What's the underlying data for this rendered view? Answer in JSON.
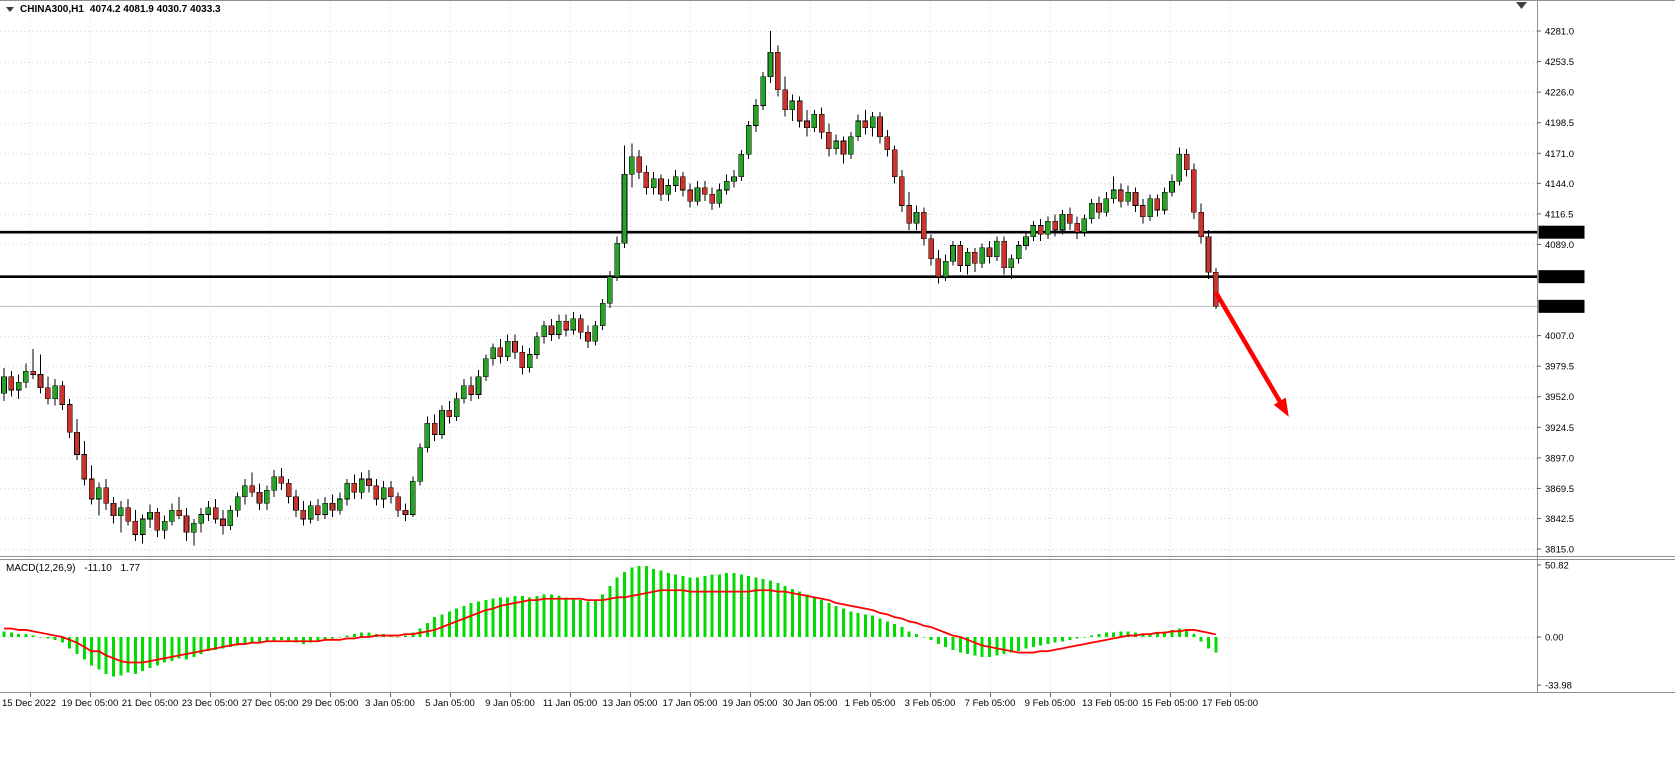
{
  "header": {
    "symbol": "CHINA300,H1",
    "ohlc": "4074.2 4081.9 4030.7 4033.3"
  },
  "macd_panel": {
    "name": "MACD(12,26,9)",
    "main_value": "-11.10",
    "signal_value": "1.77",
    "ticks": [
      {
        "label": "50.82",
        "value": 50.82
      },
      {
        "label": "0.00",
        "value": 0
      },
      {
        "label": "-33.98",
        "value": -33.98
      }
    ]
  },
  "price_axis": {
    "ticks": [
      {
        "label": "4281.0",
        "value": 4281.0
      },
      {
        "label": "4253.5",
        "value": 4253.5
      },
      {
        "label": "4226.0",
        "value": 4226.0
      },
      {
        "label": "4198.5",
        "value": 4198.5
      },
      {
        "label": "4171.0",
        "value": 4171.0
      },
      {
        "label": "4144.0",
        "value": 4144.0
      },
      {
        "label": "4116.5",
        "value": 4116.5
      },
      {
        "label": "4089.0",
        "value": 4089.0
      },
      {
        "label": "4007.0",
        "value": 4007.0
      },
      {
        "label": "3979.5",
        "value": 3979.5
      },
      {
        "label": "3952.0",
        "value": 3952.0
      },
      {
        "label": "3924.5",
        "value": 3924.5
      },
      {
        "label": "3897.0",
        "value": 3897.0
      },
      {
        "label": "3869.5",
        "value": 3869.5
      },
      {
        "label": "3842.5",
        "value": 3842.5
      },
      {
        "label": "3815.0",
        "value": 3815.0
      }
    ],
    "hidden_grid_values": [
      4061.5,
      4034.0
    ],
    "badges": [
      {
        "label": "4100.0",
        "value": 4100.0
      },
      {
        "label": "4060.0",
        "value": 4060.0
      },
      {
        "label": "4033.3",
        "value": 4033.3
      }
    ]
  },
  "time_axis": {
    "labels": [
      "15 Dec 2022",
      "19 Dec 05:00",
      "21 Dec 05:00",
      "23 Dec 05:00",
      "27 Dec 05:00",
      "29 Dec 05:00",
      "3 Jan 05:00",
      "5 Jan 05:00",
      "9 Jan 05:00",
      "11 Jan 05:00",
      "13 Jan 05:00",
      "17 Jan 05:00",
      "19 Jan 05:00",
      "30 Jan 05:00",
      "1 Feb 05:00",
      "3 Feb 05:00",
      "7 Feb 05:00",
      "9 Feb 05:00",
      "13 Feb 05:00",
      "15 Feb 05:00",
      "17 Feb 05:00"
    ]
  },
  "chart_data": {
    "type": "candlestick",
    "symbol": "CHINA300",
    "timeframe": "H1",
    "title": "CHINA300,H1",
    "current": {
      "open": 4074.2,
      "high": 4081.9,
      "low": 4030.7,
      "close": 4033.3
    },
    "ylim": [
      3815.0,
      4281.0
    ],
    "x_range": [
      "15 Dec 2022",
      "17 Feb 05:00"
    ],
    "hlines": [
      4100.0,
      4060.0
    ],
    "arrow": {
      "from": {
        "bar": 166,
        "price": 4046
      },
      "to": {
        "bar": 176,
        "price": 3934
      }
    },
    "candles": [
      [
        3955,
        3978,
        3948,
        3970
      ],
      [
        3970,
        3975,
        3952,
        3958
      ],
      [
        3958,
        3972,
        3950,
        3965
      ],
      [
        3965,
        3982,
        3960,
        3975
      ],
      [
        3975,
        3995,
        3968,
        3972
      ],
      [
        3972,
        3990,
        3955,
        3960
      ],
      [
        3960,
        3970,
        3945,
        3950
      ],
      [
        3950,
        3968,
        3944,
        3962
      ],
      [
        3962,
        3966,
        3940,
        3945
      ],
      [
        3945,
        3950,
        3915,
        3920
      ],
      [
        3920,
        3932,
        3895,
        3900
      ],
      [
        3900,
        3912,
        3872,
        3878
      ],
      [
        3878,
        3890,
        3855,
        3860
      ],
      [
        3860,
        3875,
        3845,
        3870
      ],
      [
        3870,
        3878,
        3850,
        3856
      ],
      [
        3856,
        3862,
        3838,
        3845
      ],
      [
        3845,
        3858,
        3830,
        3852
      ],
      [
        3852,
        3860,
        3836,
        3840
      ],
      [
        3840,
        3850,
        3822,
        3828
      ],
      [
        3828,
        3846,
        3820,
        3842
      ],
      [
        3842,
        3855,
        3834,
        3848
      ],
      [
        3848,
        3852,
        3826,
        3832
      ],
      [
        3832,
        3845,
        3824,
        3840
      ],
      [
        3840,
        3856,
        3836,
        3850
      ],
      [
        3850,
        3862,
        3842,
        3845
      ],
      [
        3845,
        3852,
        3822,
        3830
      ],
      [
        3830,
        3842,
        3818,
        3838
      ],
      [
        3838,
        3852,
        3830,
        3846
      ],
      [
        3846,
        3858,
        3840,
        3852
      ],
      [
        3852,
        3860,
        3838,
        3842
      ],
      [
        3842,
        3850,
        3828,
        3836
      ],
      [
        3836,
        3854,
        3832,
        3850
      ],
      [
        3850,
        3866,
        3844,
        3862
      ],
      [
        3862,
        3878,
        3855,
        3872
      ],
      [
        3872,
        3884,
        3862,
        3866
      ],
      [
        3866,
        3874,
        3850,
        3856
      ],
      [
        3856,
        3872,
        3850,
        3868
      ],
      [
        3868,
        3886,
        3862,
        3880
      ],
      [
        3880,
        3888,
        3868,
        3874
      ],
      [
        3874,
        3878,
        3856,
        3862
      ],
      [
        3862,
        3868,
        3844,
        3850
      ],
      [
        3850,
        3858,
        3836,
        3842
      ],
      [
        3842,
        3858,
        3838,
        3854
      ],
      [
        3854,
        3860,
        3840,
        3846
      ],
      [
        3846,
        3862,
        3842,
        3856
      ],
      [
        3856,
        3864,
        3844,
        3850
      ],
      [
        3850,
        3866,
        3846,
        3860
      ],
      [
        3860,
        3878,
        3854,
        3874
      ],
      [
        3874,
        3882,
        3860,
        3866
      ],
      [
        3866,
        3884,
        3860,
        3878
      ],
      [
        3878,
        3886,
        3866,
        3872
      ],
      [
        3872,
        3878,
        3854,
        3860
      ],
      [
        3860,
        3876,
        3852,
        3870
      ],
      [
        3870,
        3876,
        3856,
        3862
      ],
      [
        3862,
        3866,
        3844,
        3850
      ],
      [
        3850,
        3856,
        3840,
        3846
      ],
      [
        3846,
        3880,
        3844,
        3876
      ],
      [
        3876,
        3910,
        3872,
        3906
      ],
      [
        3906,
        3934,
        3902,
        3928
      ],
      [
        3928,
        3936,
        3912,
        3918
      ],
      [
        3918,
        3944,
        3914,
        3940
      ],
      [
        3940,
        3948,
        3928,
        3934
      ],
      [
        3934,
        3956,
        3930,
        3950
      ],
      [
        3950,
        3968,
        3946,
        3962
      ],
      [
        3962,
        3970,
        3948,
        3954
      ],
      [
        3954,
        3976,
        3950,
        3970
      ],
      [
        3970,
        3990,
        3966,
        3986
      ],
      [
        3986,
        4000,
        3980,
        3996
      ],
      [
        3996,
        4004,
        3982,
        3988
      ],
      [
        3988,
        4008,
        3984,
        4002
      ],
      [
        4002,
        4008,
        3986,
        3992
      ],
      [
        3992,
        3998,
        3972,
        3978
      ],
      [
        3978,
        3996,
        3974,
        3990
      ],
      [
        3990,
        4010,
        3986,
        4006
      ],
      [
        4006,
        4020,
        4000,
        4016
      ],
      [
        4016,
        4022,
        4002,
        4008
      ],
      [
        4008,
        4026,
        4004,
        4020
      ],
      [
        4020,
        4026,
        4006,
        4012
      ],
      [
        4012,
        4028,
        4008,
        4022
      ],
      [
        4022,
        4026,
        4004,
        4010
      ],
      [
        4010,
        4016,
        3996,
        4002
      ],
      [
        4002,
        4020,
        3998,
        4016
      ],
      [
        4016,
        4040,
        4012,
        4036
      ],
      [
        4036,
        4065,
        4032,
        4060
      ],
      [
        4060,
        4096,
        4056,
        4090
      ],
      [
        4090,
        4178,
        4086,
        4152
      ],
      [
        4152,
        4180,
        4140,
        4168
      ],
      [
        4168,
        4174,
        4148,
        4154
      ],
      [
        4154,
        4160,
        4134,
        4140
      ],
      [
        4140,
        4154,
        4134,
        4148
      ],
      [
        4148,
        4152,
        4128,
        4134
      ],
      [
        4134,
        4148,
        4128,
        4142
      ],
      [
        4142,
        4156,
        4136,
        4150
      ],
      [
        4150,
        4154,
        4132,
        4138
      ],
      [
        4138,
        4144,
        4122,
        4128
      ],
      [
        4128,
        4146,
        4124,
        4140
      ],
      [
        4140,
        4146,
        4128,
        4134
      ],
      [
        4134,
        4140,
        4120,
        4126
      ],
      [
        4126,
        4144,
        4122,
        4138
      ],
      [
        4138,
        4152,
        4134,
        4146
      ],
      [
        4146,
        4156,
        4140,
        4150
      ],
      [
        4150,
        4174,
        4146,
        4170
      ],
      [
        4170,
        4200,
        4166,
        4196
      ],
      [
        4196,
        4220,
        4190,
        4214
      ],
      [
        4214,
        4244,
        4210,
        4240
      ],
      [
        4240,
        4281,
        4234,
        4262
      ],
      [
        4262,
        4268,
        4222,
        4228
      ],
      [
        4228,
        4240,
        4204,
        4210
      ],
      [
        4210,
        4224,
        4200,
        4218
      ],
      [
        4218,
        4222,
        4194,
        4200
      ],
      [
        4200,
        4210,
        4186,
        4194
      ],
      [
        4194,
        4210,
        4190,
        4206
      ],
      [
        4206,
        4212,
        4184,
        4190
      ],
      [
        4190,
        4198,
        4168,
        4175
      ],
      [
        4175,
        4188,
        4170,
        4182
      ],
      [
        4182,
        4186,
        4162,
        4170
      ],
      [
        4170,
        4190,
        4166,
        4186
      ],
      [
        4186,
        4206,
        4182,
        4200
      ],
      [
        4200,
        4210,
        4188,
        4194
      ],
      [
        4194,
        4208,
        4186,
        4204
      ],
      [
        4204,
        4208,
        4180,
        4186
      ],
      [
        4186,
        4192,
        4168,
        4174
      ],
      [
        4174,
        4178,
        4144,
        4150
      ],
      [
        4150,
        4156,
        4118,
        4124
      ],
      [
        4124,
        4136,
        4102,
        4108
      ],
      [
        4108,
        4124,
        4102,
        4118
      ],
      [
        4118,
        4122,
        4088,
        4094
      ],
      [
        4094,
        4098,
        4070,
        4076
      ],
      [
        4076,
        4084,
        4054,
        4060
      ],
      [
        4060,
        4080,
        4056,
        4074
      ],
      [
        4074,
        4092,
        4070,
        4088
      ],
      [
        4088,
        4092,
        4064,
        4070
      ],
      [
        4070,
        4086,
        4062,
        4082
      ],
      [
        4082,
        4086,
        4064,
        4072
      ],
      [
        4072,
        4090,
        4068,
        4086
      ],
      [
        4086,
        4092,
        4072,
        4078
      ],
      [
        4078,
        4096,
        4074,
        4092
      ],
      [
        4092,
        4096,
        4062,
        4068
      ],
      [
        4068,
        4080,
        4058,
        4076
      ],
      [
        4076,
        4092,
        4072,
        4088
      ],
      [
        4088,
        4100,
        4084,
        4096
      ],
      [
        4096,
        4110,
        4092,
        4106
      ],
      [
        4106,
        4112,
        4092,
        4098
      ],
      [
        4098,
        4114,
        4094,
        4110
      ],
      [
        4110,
        4116,
        4096,
        4102
      ],
      [
        4102,
        4120,
        4098,
        4116
      ],
      [
        4116,
        4122,
        4102,
        4108
      ],
      [
        4108,
        4114,
        4094,
        4100
      ],
      [
        4100,
        4116,
        4096,
        4112
      ],
      [
        4112,
        4130,
        4108,
        4126
      ],
      [
        4126,
        4132,
        4112,
        4118
      ],
      [
        4118,
        4136,
        4114,
        4130
      ],
      [
        4130,
        4150,
        4126,
        4138
      ],
      [
        4138,
        4144,
        4122,
        4128
      ],
      [
        4128,
        4142,
        4124,
        4136
      ],
      [
        4136,
        4140,
        4118,
        4124
      ],
      [
        4124,
        4130,
        4108,
        4114
      ],
      [
        4114,
        4134,
        4110,
        4130
      ],
      [
        4130,
        4134,
        4114,
        4120
      ],
      [
        4120,
        4140,
        4116,
        4136
      ],
      [
        4136,
        4152,
        4132,
        4146
      ],
      [
        4146,
        4176,
        4142,
        4170
      ],
      [
        4170,
        4175,
        4150,
        4156
      ],
      [
        4156,
        4162,
        4112,
        4118
      ],
      [
        4118,
        4126,
        4090,
        4096
      ],
      [
        4096,
        4102,
        4058,
        4064
      ],
      [
        4064,
        4068,
        4030.7,
        4033.3
      ]
    ],
    "indicator": {
      "type": "MACD",
      "params": [
        12,
        26,
        9
      ],
      "last_main": -11.1,
      "last_signal": 1.77,
      "ylim": [
        -33.98,
        50.82
      ],
      "histogram": [
        4,
        3,
        2,
        2,
        1,
        0,
        -1,
        -2,
        -4,
        -8,
        -12,
        -16,
        -20,
        -23,
        -26,
        -28,
        -27,
        -25,
        -26,
        -24,
        -22,
        -20,
        -18,
        -17,
        -15,
        -16,
        -14,
        -12,
        -10,
        -9,
        -8,
        -7,
        -6,
        -5,
        -4,
        -4,
        -3,
        -3,
        -2,
        -3,
        -4,
        -5,
        -4,
        -3,
        -2,
        -1,
        0,
        1,
        2,
        3,
        3,
        2,
        2,
        1,
        0,
        1,
        3,
        6,
        10,
        14,
        16,
        18,
        20,
        22,
        24,
        25,
        26,
        27,
        28,
        28,
        29,
        29,
        28,
        29,
        30,
        30,
        29,
        28,
        27,
        26,
        25,
        26,
        30,
        36,
        42,
        46,
        49,
        50,
        50,
        48,
        47,
        45,
        44,
        43,
        42,
        42,
        43,
        44,
        44,
        45,
        45,
        44,
        43,
        42,
        41,
        40,
        38,
        36,
        34,
        32,
        30,
        28,
        26,
        24,
        22,
        20,
        18,
        17,
        16,
        15,
        13,
        11,
        9,
        7,
        4,
        2,
        0,
        -2,
        -5,
        -7,
        -9,
        -11,
        -12,
        -13,
        -14,
        -14,
        -13,
        -12,
        -11,
        -10,
        -8,
        -7,
        -6,
        -5,
        -4,
        -3,
        -2,
        -1,
        0,
        1,
        2,
        3,
        3,
        4,
        4,
        3,
        2,
        2,
        3,
        4,
        5,
        6,
        5,
        2,
        -3,
        -8,
        -11.1
      ],
      "signal": [
        6,
        6,
        5,
        5,
        4,
        3,
        2,
        1,
        0,
        -2,
        -4,
        -7,
        -10,
        -10,
        -13,
        -15,
        -17,
        -18,
        -18,
        -18,
        -17,
        -16,
        -15,
        -14,
        -13,
        -12,
        -11,
        -10,
        -9,
        -8,
        -7,
        -6,
        -5,
        -5,
        -4,
        -4,
        -3,
        -3,
        -3,
        -3,
        -3,
        -3,
        -3,
        -3,
        -2,
        -2,
        -2,
        -1,
        -1,
        0,
        0,
        1,
        1,
        1,
        1,
        2,
        2,
        3,
        4,
        5,
        7,
        9,
        11,
        13,
        15,
        17,
        19,
        20,
        22,
        23,
        24,
        25,
        26,
        26,
        27,
        27,
        27,
        27,
        27,
        27,
        26,
        26,
        26,
        27,
        28,
        28,
        29,
        30,
        31,
        32,
        33,
        33,
        33,
        33,
        32,
        32,
        32,
        32,
        32,
        32,
        32,
        32,
        32,
        33,
        33,
        33,
        32,
        32,
        31,
        30,
        29,
        28,
        27,
        26,
        24,
        23,
        22,
        21,
        20,
        19,
        17,
        16,
        14,
        13,
        11,
        10,
        8,
        7,
        5,
        3,
        1,
        0,
        -2,
        -4,
        -6,
        -7,
        -8,
        -9,
        -10,
        -11,
        -11,
        -11,
        -10,
        -10,
        -9,
        -8,
        -7,
        -6,
        -5,
        -4,
        -3,
        -2,
        -1,
        0,
        1,
        1,
        2,
        2,
        3,
        3,
        4,
        4,
        5,
        5,
        4,
        3,
        1.77
      ]
    }
  },
  "colors": {
    "background": "#ffffff",
    "grid": "#d6d6d6",
    "bull": "#27a227",
    "bear": "#c9352d",
    "wick": "#000000",
    "histogram": "#00dc00",
    "signal_line": "#ff0000",
    "level_line": "#000000",
    "badge_bg": "#000000",
    "badge_text": "#ffffff",
    "axis_text": "#000000",
    "arrow": "#ff0000",
    "bid_line": "#c0c0c0",
    "separator": "#909090",
    "shift_marker": "#404040"
  }
}
